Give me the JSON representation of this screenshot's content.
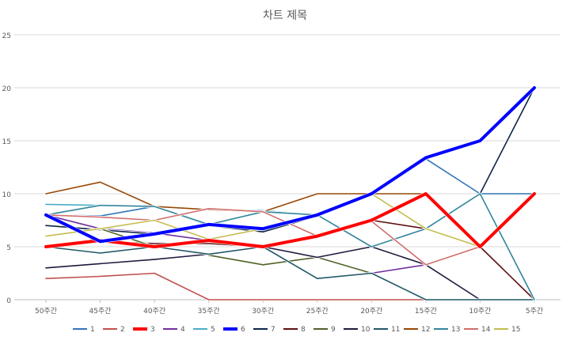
{
  "chart_data": {
    "type": "line",
    "title": "차트 제목",
    "xlabel": "",
    "ylabel": "",
    "categories": [
      "50주간",
      "45주간",
      "40주간",
      "35주간",
      "30주간",
      "25주간",
      "20주간",
      "15주간",
      "10주간",
      "5주간"
    ],
    "ylim": [
      0,
      25
    ],
    "yticks": [
      0,
      5,
      10,
      15,
      20,
      25
    ],
    "grid": true,
    "legend": "bottom",
    "series": [
      {
        "name": "1",
        "color": "#2e75b6",
        "values": [
          8,
          7.9,
          8.8,
          8.5,
          8.4,
          8,
          10,
          13.3,
          10,
          10
        ]
      },
      {
        "name": "2",
        "color": "#c0504d",
        "values": [
          2,
          2.2,
          2.5,
          0,
          0,
          0,
          0,
          0,
          0,
          0
        ]
      },
      {
        "name": "3",
        "color": "#ff0000",
        "values": [
          5,
          5.6,
          5,
          5.6,
          5,
          6,
          7.5,
          10,
          5,
          10
        ]
      },
      {
        "name": "4",
        "color": "#7030a0",
        "values": [
          8,
          6.7,
          6.3,
          5.6,
          5,
          4,
          2.5,
          3.3,
          5,
          10
        ]
      },
      {
        "name": "5",
        "color": "#4bacc6",
        "values": [
          9,
          8.9,
          8.8,
          7,
          8.3,
          8,
          5,
          6.7,
          5,
          10
        ]
      },
      {
        "name": "6",
        "color": "#0000ff",
        "values": [
          8,
          5.5,
          6.2,
          7.1,
          6.7,
          8,
          10,
          13.4,
          15,
          20
        ]
      },
      {
        "name": "7",
        "color": "#0b2545",
        "values": [
          7,
          6.6,
          6.2,
          7,
          6.4,
          7.9,
          10,
          6.7,
          10,
          20
        ]
      },
      {
        "name": "8",
        "color": "#5c1010",
        "values": [
          5,
          5.5,
          5.3,
          5.3,
          5,
          6,
          7.5,
          6.7,
          5,
          0
        ]
      },
      {
        "name": "9",
        "color": "#4f6228",
        "values": [
          6,
          6.7,
          5,
          4.2,
          3.3,
          4,
          2.5,
          0,
          0,
          0
        ]
      },
      {
        "name": "10",
        "color": "#1f1a3d",
        "values": [
          3,
          3.4,
          3.8,
          4.3,
          5,
          4,
          5,
          3.3,
          0,
          0
        ]
      },
      {
        "name": "11",
        "color": "#215868",
        "values": [
          5,
          4.4,
          5,
          4.3,
          5,
          2,
          2.5,
          0,
          0,
          0
        ]
      },
      {
        "name": "12",
        "color": "#984807",
        "values": [
          10,
          11.1,
          8.8,
          8.5,
          8.3,
          10,
          10,
          10,
          5,
          10
        ]
      },
      {
        "name": "13",
        "color": "#31859c",
        "values": [
          8,
          8.9,
          8.8,
          7.1,
          8.3,
          8,
          5,
          6.7,
          10,
          0
        ]
      },
      {
        "name": "14",
        "color": "#d06d6d",
        "values": [
          8,
          7.8,
          7.5,
          8.6,
          8.3,
          6,
          7.4,
          3.3,
          5,
          10
        ]
      },
      {
        "name": "15",
        "color": "#c4bd4f",
        "values": [
          6,
          6.7,
          7.5,
          5.7,
          6.7,
          8,
          10,
          6.7,
          5,
          10
        ]
      }
    ],
    "highlighted": [
      "3",
      "6"
    ]
  }
}
